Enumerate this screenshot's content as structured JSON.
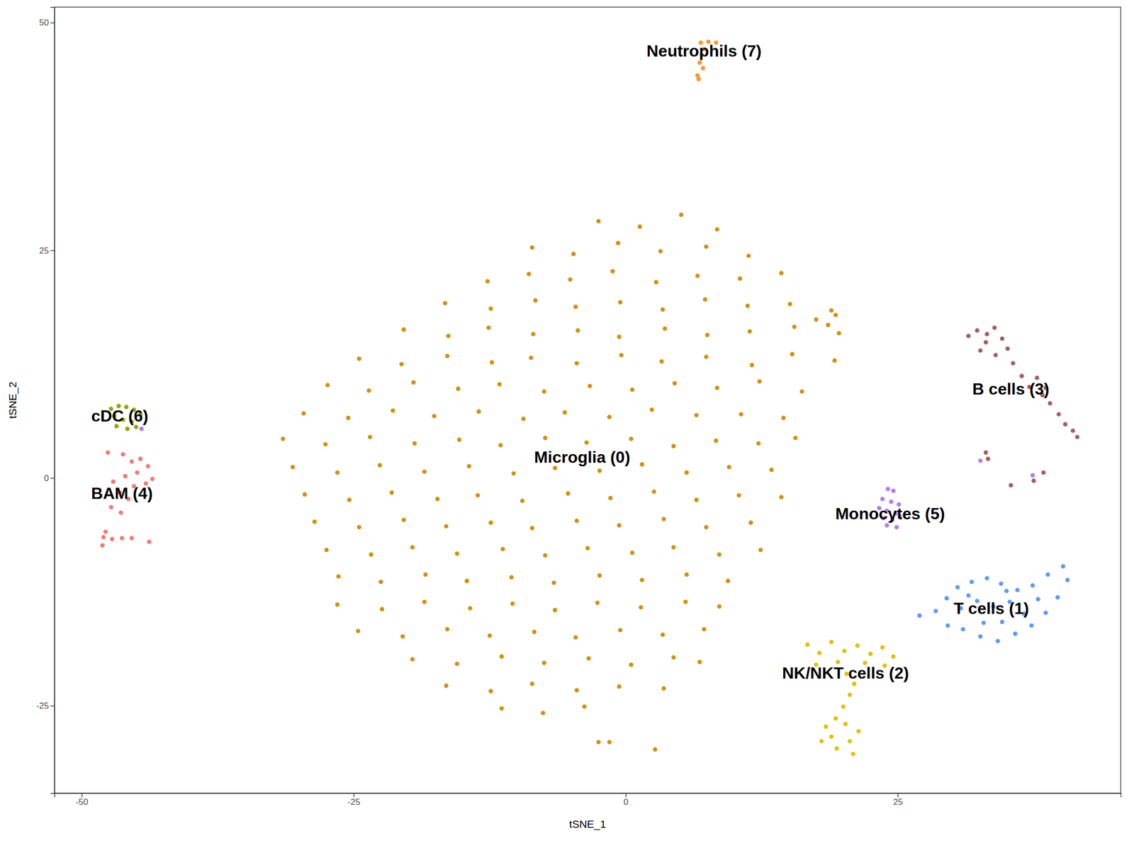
{
  "chart_data": {
    "type": "scatter",
    "x_label": "tSNE_1",
    "y_label": "tSNE_2",
    "xlim": [
      -52.5,
      45.5
    ],
    "ylim": [
      -34.6,
      51.7
    ],
    "xticks": [
      -50,
      -25,
      0,
      25
    ],
    "yticks": [
      -25,
      0,
      25,
      50
    ],
    "grid": false,
    "series": [
      {
        "color": "#D4900A",
        "x": [
          -2.5,
          1.3,
          5.1,
          8.4,
          -8.6,
          -4.8,
          -0.7,
          3.2,
          7.4,
          11.3,
          -12.7,
          -8.9,
          -5.1,
          -1.2,
          2.8,
          6.6,
          10.5,
          14.3,
          -16.6,
          -12.4,
          -8.3,
          -4.6,
          -0.5,
          3.4,
          7.3,
          11.2,
          15.1,
          18.9,
          -20.4,
          -16.3,
          -12.6,
          -8.5,
          -4.4,
          -0.6,
          3.6,
          7.5,
          11.4,
          15.5,
          19.6,
          -24.5,
          -20.6,
          -16.4,
          -12.3,
          -8.7,
          -4.5,
          -0.4,
          3.3,
          7.4,
          11.6,
          15.3,
          19.2,
          -27.4,
          -23.6,
          -19.5,
          -15.4,
          -11.6,
          -7.5,
          -3.3,
          0.6,
          4.5,
          8.4,
          12.3,
          16.2,
          -29.6,
          -25.5,
          -21.4,
          -17.6,
          -13.5,
          -9.4,
          -5.6,
          -1.5,
          2.4,
          6.5,
          10.6,
          14.5,
          -31.5,
          -27.6,
          -23.5,
          -19.4,
          -15.3,
          -11.5,
          -7.4,
          -3.6,
          0.5,
          4.4,
          8.3,
          12.2,
          15.6,
          -30.6,
          -26.5,
          -22.6,
          -18.5,
          -14.4,
          -10.3,
          -6.5,
          -2.4,
          1.5,
          5.6,
          9.5,
          13.4,
          -29.5,
          -25.4,
          -21.5,
          -17.3,
          -13.6,
          -9.5,
          -5.3,
          -1.4,
          2.6,
          6.5,
          10.4,
          14.3,
          -28.6,
          -24.5,
          -20.4,
          -16.5,
          -12.4,
          -8.6,
          -4.5,
          -0.6,
          3.5,
          7.4,
          11.5,
          -27.5,
          -23.4,
          -19.6,
          -15.5,
          -11.3,
          -7.4,
          -3.5,
          0.6,
          4.4,
          8.6,
          12.4,
          -26.4,
          -22.5,
          -18.4,
          -14.6,
          -10.5,
          -6.6,
          -2.4,
          1.5,
          5.6,
          9.4,
          -26.5,
          -22.4,
          -18.5,
          -14.3,
          -10.4,
          -6.5,
          -2.6,
          1.4,
          5.5,
          8.6,
          -24.6,
          -20.5,
          -16.4,
          -12.5,
          -8.4,
          -4.6,
          -0.5,
          3.4,
          7.2,
          -19.6,
          -15.5,
          -11.4,
          -7.5,
          -3.4,
          0.5,
          4.4,
          6.8,
          -16.5,
          -12.4,
          -8.6,
          -4.5,
          -0.6,
          3.5,
          -11.4,
          -7.6,
          -3.8,
          -2.5,
          -1.5,
          2.7,
          17.5,
          18.6,
          19.3
        ],
        "y": [
          28.2,
          27.6,
          28.9,
          27.3,
          25.3,
          24.6,
          25.8,
          24.9,
          25.4,
          24.4,
          21.6,
          22.4,
          21.8,
          22.7,
          21.5,
          22.2,
          21.9,
          22.5,
          19.2,
          18.6,
          19.5,
          18.8,
          19.3,
          18.5,
          19.6,
          18.9,
          19.1,
          18.4,
          16.3,
          15.6,
          16.5,
          15.8,
          16.2,
          15.5,
          16.4,
          15.7,
          16.1,
          16.6,
          15.9,
          13.1,
          12.5,
          13.4,
          12.7,
          13.2,
          12.6,
          13.5,
          12.8,
          13.3,
          12.4,
          13.6,
          12.9,
          10.2,
          9.6,
          10.5,
          9.8,
          10.3,
          9.5,
          10.1,
          9.7,
          10.4,
          9.9,
          10.6,
          9.5,
          7.1,
          6.6,
          7.4,
          6.8,
          7.3,
          6.5,
          7.2,
          6.7,
          7.5,
          6.9,
          7.0,
          6.6,
          4.3,
          3.7,
          4.5,
          3.8,
          4.2,
          3.6,
          4.4,
          3.9,
          4.3,
          3.5,
          4.1,
          3.8,
          4.4,
          1.2,
          0.6,
          1.4,
          0.7,
          1.3,
          0.5,
          1.1,
          0.8,
          1.5,
          0.6,
          1.2,
          0.9,
          -1.8,
          -2.4,
          -1.6,
          -2.3,
          -1.9,
          -2.5,
          -1.7,
          -2.2,
          -1.5,
          -2.4,
          -1.9,
          -2.1,
          -4.8,
          -5.4,
          -4.6,
          -5.3,
          -4.9,
          -5.5,
          -4.7,
          -5.2,
          -4.5,
          -5.4,
          -4.9,
          -7.9,
          -8.4,
          -7.6,
          -8.3,
          -7.8,
          -8.5,
          -7.7,
          -8.2,
          -7.6,
          -8.4,
          -7.9,
          -10.8,
          -11.4,
          -10.6,
          -11.3,
          -10.9,
          -11.5,
          -10.7,
          -11.2,
          -10.6,
          -11.3,
          -13.9,
          -14.4,
          -13.6,
          -14.3,
          -13.8,
          -14.5,
          -13.7,
          -14.2,
          -13.6,
          -14.1,
          -16.8,
          -17.4,
          -16.6,
          -17.3,
          -16.9,
          -17.5,
          -16.7,
          -17.2,
          -16.6,
          -19.9,
          -20.4,
          -19.6,
          -20.3,
          -19.8,
          -20.5,
          -19.7,
          -20.2,
          -22.8,
          -23.4,
          -22.6,
          -23.3,
          -22.9,
          -23.1,
          -25.3,
          -25.8,
          -25.1,
          -29.0,
          -29.0,
          -29.8,
          17.4,
          16.8,
          17.9
        ]
      },
      {
        "color": "#5E9BF2",
        "x": [
          27.0,
          28.5,
          29.5,
          30.5,
          31.8,
          33.2,
          34.5,
          36.0,
          37.4,
          38.8,
          40.2,
          40.6,
          39.7,
          38.6,
          37.3,
          35.8,
          34.2,
          32.6,
          31.0,
          29.6,
          30.8,
          32.3,
          33.8,
          35.3,
          36.6,
          34.6,
          32.9,
          31.5,
          35.0,
          37.9
        ],
        "y": [
          -15.1,
          -14.6,
          -13.2,
          -12.0,
          -11.4,
          -11.0,
          -11.6,
          -12.3,
          -11.8,
          -10.6,
          -9.7,
          -11.2,
          -13.1,
          -14.8,
          -16.2,
          -17.1,
          -17.9,
          -17.4,
          -16.6,
          -16.2,
          -14.3,
          -13.5,
          -14.1,
          -13.6,
          -14.9,
          -15.8,
          -15.9,
          -12.9,
          -12.4,
          -13.3
        ]
      },
      {
        "color": "#E3C100",
        "x": [
          16.7,
          17.8,
          18.9,
          20.1,
          21.3,
          22.5,
          23.6,
          24.6,
          17.5,
          19.5,
          22.0,
          23.8,
          20.3,
          21.0,
          20.6,
          20.0,
          19.3,
          18.4,
          20.2,
          21.4,
          18.9,
          20.6,
          19.4,
          20.9,
          18.0
        ],
        "y": [
          -18.3,
          -19.2,
          -18.0,
          -19.0,
          -18.4,
          -19.3,
          -18.6,
          -19.6,
          -20.5,
          -20.2,
          -20.3,
          -20.6,
          -21.5,
          -22.6,
          -23.8,
          -25.1,
          -26.4,
          -27.3,
          -27.0,
          -27.8,
          -28.4,
          -28.9,
          -29.7,
          -30.3,
          -28.9
        ]
      },
      {
        "color": "#A3615E",
        "x": [
          31.5,
          32.3,
          33.1,
          33.9,
          34.6,
          35.1,
          32.6,
          34.0,
          33.2,
          35.6,
          36.4,
          37.1,
          37.8,
          38.3,
          39.0,
          39.8,
          40.4,
          41.1,
          41.5,
          38.6,
          33.1,
          33.3,
          35.4,
          37.5,
          38.4
        ],
        "y": [
          15.6,
          16.2,
          14.9,
          16.5,
          15.3,
          14.2,
          14.0,
          13.5,
          15.8,
          12.6,
          11.2,
          10.0,
          11.0,
          9.1,
          8.2,
          7.0,
          5.9,
          5.2,
          4.5,
          9.9,
          2.8,
          2.1,
          -0.8,
          -0.3,
          0.6
        ]
      },
      {
        "color": "#F47A72",
        "x": [
          -46.2,
          -45.4,
          -44.6,
          -43.9,
          -44.9,
          -46.0,
          -47.1,
          -45.2,
          -44.1,
          -43.5,
          -46.5,
          -45.7,
          -47.3,
          -46.4,
          -47.8,
          -48.0,
          -47.2,
          -46.3,
          -45.4,
          -48.1,
          -43.8,
          -47.6
        ],
        "y": [
          2.6,
          1.8,
          2.1,
          1.3,
          0.6,
          0.2,
          -0.4,
          -0.9,
          -0.6,
          -0.1,
          -1.6,
          -2.3,
          -3.2,
          -3.8,
          -5.9,
          -6.5,
          -6.7,
          -6.6,
          -6.6,
          -7.4,
          -7.0,
          2.8
        ]
      },
      {
        "color": "#B27CF0",
        "x": [
          24.1,
          24.6,
          23.6,
          24.4,
          25.1,
          23.3,
          24.0,
          24.8,
          23.7,
          24.5,
          25.2,
          24.0,
          24.9,
          37.4,
          32.6,
          -44.5
        ],
        "y": [
          -1.2,
          -1.4,
          -2.3,
          -2.6,
          -2.9,
          -3.3,
          -3.6,
          -3.9,
          -4.4,
          -4.6,
          -4.2,
          -5.2,
          -5.4,
          0.3,
          1.9,
          5.4
        ]
      },
      {
        "color": "#93A800",
        "x": [
          -47.3,
          -46.6,
          -45.9,
          -45.2,
          -44.6,
          -47.0,
          -46.2,
          -45.4,
          -46.8,
          -45.8,
          -45.0
        ],
        "y": [
          7.6,
          7.9,
          7.8,
          7.5,
          7.0,
          6.8,
          6.4,
          6.2,
          5.7,
          5.4,
          5.6
        ]
      },
      {
        "color": "#FF962C",
        "x": [
          6.9,
          7.6,
          8.3,
          7.2,
          7.0,
          6.8,
          7.1,
          6.6,
          6.7
        ],
        "y": [
          47.8,
          47.9,
          47.8,
          47.1,
          46.4,
          45.6,
          45.0,
          44.2,
          43.8
        ]
      }
    ],
    "annotations": [
      {
        "text": "Neutrophils (7)",
        "x": 7.2,
        "y": 46.9
      },
      {
        "text": "cDC (6)",
        "x": -46.5,
        "y": 6.8
      },
      {
        "text": "B cells (3)",
        "x": 35.4,
        "y": 9.8
      },
      {
        "text": "Microglia (0)",
        "x": -4.0,
        "y": 2.3
      },
      {
        "text": "BAM (4)",
        "x": -46.3,
        "y": -1.7
      },
      {
        "text": "Monocytes (5)",
        "x": 24.3,
        "y": -3.9
      },
      {
        "text": "T cells (1)",
        "x": 33.6,
        "y": -14.3
      },
      {
        "text": "NK/NKT cells (2)",
        "x": 20.2,
        "y": -21.4
      }
    ]
  }
}
